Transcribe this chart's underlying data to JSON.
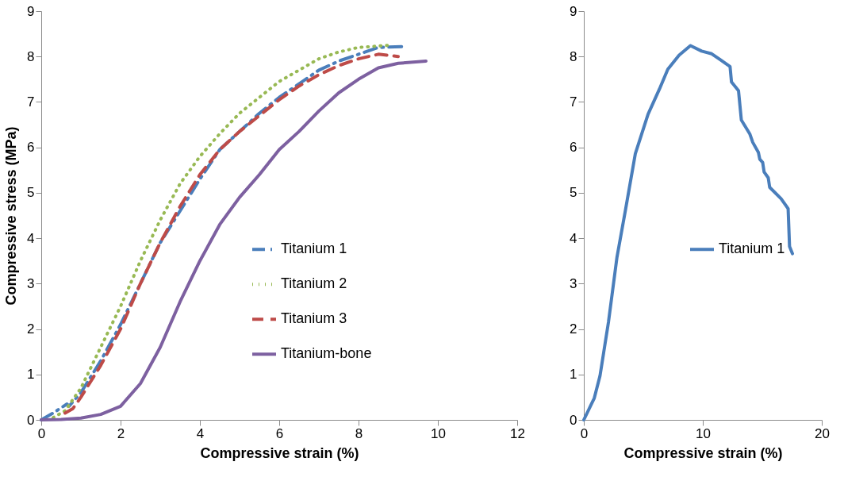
{
  "chart_data": [
    {
      "type": "line",
      "xlabel": "Compressive strain (%)",
      "ylabel": "Compressive stress (MPa)",
      "xlim": [
        0,
        12
      ],
      "xticks": [
        0,
        2,
        4,
        6,
        8,
        10,
        12
      ],
      "ylim": [
        0,
        9
      ],
      "yticks": [
        0,
        1,
        2,
        3,
        4,
        5,
        6,
        7,
        8,
        9
      ],
      "grid": false,
      "legend": "right",
      "marker": "none",
      "series": [
        {
          "name": "Titanium 1",
          "color": "#4a7ebb",
          "line_style": "dashdot",
          "x": [
            0,
            0.3,
            0.65,
            0.7,
            1.0,
            1.5,
            2,
            2.5,
            3,
            3.5,
            4,
            4.5,
            5,
            5.5,
            6,
            6.5,
            7,
            7.5,
            8,
            8.5,
            9.19
          ],
          "values": [
            0,
            0.15,
            0.35,
            0.3,
            0.6,
            1.3,
            2.1,
            3.0,
            3.9,
            4.6,
            5.3,
            5.95,
            6.35,
            6.75,
            7.1,
            7.4,
            7.7,
            7.9,
            8.05,
            8.2,
            8.22
          ]
        },
        {
          "name": "Titanium 2",
          "color": "#98b954",
          "line_style": "dotted",
          "x": [
            0.3,
            0.6,
            1,
            1.5,
            2,
            2.5,
            3,
            3.5,
            4,
            4.5,
            5,
            5.5,
            6,
            6.5,
            7,
            7.5,
            8,
            8.8
          ],
          "values": [
            0.05,
            0.2,
            0.7,
            1.6,
            2.5,
            3.5,
            4.4,
            5.2,
            5.8,
            6.3,
            6.75,
            7.1,
            7.45,
            7.7,
            7.95,
            8.1,
            8.2,
            8.25
          ]
        },
        {
          "name": "Titanium 3",
          "color": "#be4b48",
          "line_style": "dashed",
          "x": [
            0.6,
            0.8,
            1,
            1.5,
            2,
            2.5,
            3,
            3.5,
            4,
            4.5,
            5,
            5.5,
            6,
            6.5,
            7,
            7.5,
            8,
            8.5,
            9
          ],
          "values": [
            0.15,
            0.25,
            0.5,
            1.2,
            2.0,
            3.0,
            3.9,
            4.7,
            5.4,
            5.95,
            6.35,
            6.7,
            7.05,
            7.35,
            7.6,
            7.8,
            7.95,
            8.05,
            8.0
          ]
        },
        {
          "name": "Titanium-bone",
          "color": "#7d60a0",
          "line_style": "solid",
          "x": [
            0,
            0.5,
            1,
            1.5,
            2,
            2.5,
            3,
            3.5,
            4,
            4.5,
            5,
            5.5,
            6,
            6.5,
            7,
            7.5,
            8,
            8.5,
            9,
            9.7
          ],
          "values": [
            0,
            0.01,
            0.04,
            0.12,
            0.3,
            0.8,
            1.6,
            2.6,
            3.5,
            4.3,
            4.9,
            5.4,
            5.95,
            6.35,
            6.8,
            7.2,
            7.5,
            7.75,
            7.85,
            7.9
          ]
        }
      ]
    },
    {
      "type": "line",
      "xlabel": "Compressive strain (%)",
      "xlim": [
        0,
        20
      ],
      "xticks": [
        0,
        10,
        20
      ],
      "ylim": [
        0,
        9
      ],
      "yticks": [
        0,
        1,
        2,
        3,
        4,
        5,
        6,
        7,
        8,
        9
      ],
      "grid": false,
      "legend": "right",
      "marker": "none",
      "series": [
        {
          "name": "Titanium 1",
          "color": "#4a7ebb",
          "line_style": "solid",
          "x": [
            0,
            0.88,
            1.36,
            2.07,
            2.78,
            3.5,
            4.33,
            5.4,
            6.35,
            7.06,
            8.01,
            8.96,
            9.9,
            10.75,
            11.46,
            12.29,
            12.41,
            13.0,
            13.24,
            13.96,
            14.2,
            14.67,
            14.79,
            15.03,
            15.15,
            15.5,
            15.62,
            16.58,
            17.17,
            17.29,
            17.53
          ],
          "values": [
            0,
            0.48,
            0.97,
            2.15,
            3.57,
            4.62,
            5.86,
            6.73,
            7.28,
            7.72,
            8.03,
            8.24,
            8.12,
            8.06,
            7.93,
            7.78,
            7.44,
            7.25,
            6.6,
            6.29,
            6.11,
            5.89,
            5.74,
            5.67,
            5.46,
            5.33,
            5.12,
            4.87,
            4.65,
            3.82,
            3.66
          ]
        }
      ]
    }
  ]
}
